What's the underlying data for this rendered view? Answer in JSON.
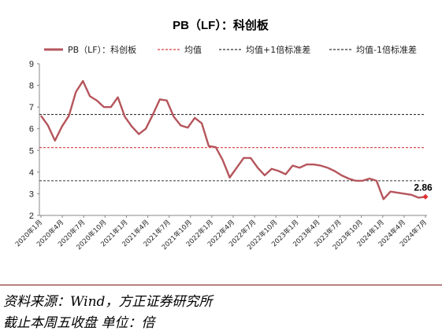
{
  "chart_data": {
    "type": "line",
    "title": "PB（LF）：科创板",
    "xlabel": "",
    "ylabel": "",
    "ylim": [
      2,
      9
    ],
    "yticks": [
      2,
      3,
      4,
      5,
      6,
      7,
      8,
      9
    ],
    "grid": false,
    "legend_position": "top",
    "x_tick_labels": [
      "2020年1月",
      "2020年4月",
      "2020年7月",
      "2020年10月",
      "2021年1月",
      "2021年4月",
      "2021年7月",
      "2021年10月",
      "2022年1月",
      "2022年4月",
      "2022年7月",
      "2022年10月",
      "2023年1月",
      "2023年4月",
      "2023年7月",
      "2023年10月",
      "2024年1月",
      "2024年4月",
      "2024年7月"
    ],
    "series": [
      {
        "name": "PB（LF）：科创板",
        "color": "#b5555c",
        "values": [
          6.6,
          6.15,
          5.45,
          6.1,
          6.6,
          7.7,
          8.2,
          7.5,
          7.3,
          7.0,
          7.0,
          7.45,
          6.55,
          6.1,
          5.75,
          6.0,
          6.65,
          7.35,
          7.3,
          6.55,
          6.15,
          6.05,
          6.5,
          6.25,
          5.2,
          5.15,
          4.55,
          3.75,
          4.2,
          4.65,
          4.65,
          4.2,
          3.85,
          4.15,
          4.05,
          3.9,
          4.3,
          4.2,
          4.35,
          4.35,
          4.3,
          4.2,
          4.05,
          3.85,
          3.7,
          3.6,
          3.6,
          3.7,
          3.6,
          2.75,
          3.1,
          3.05,
          3.0,
          2.95,
          2.82,
          2.86
        ]
      }
    ],
    "reference_lines": [
      {
        "name": "均值",
        "value": 5.13,
        "color": "#d93b3b",
        "style": "dashed"
      },
      {
        "name": "均值+1倍标准差",
        "value": 6.66,
        "color": "#333333",
        "style": "dashed"
      },
      {
        "name": "均值-1倍标准差",
        "value": 3.6,
        "color": "#333333",
        "style": "dashed"
      }
    ],
    "annotations": [
      {
        "text": "2.86",
        "x_index": 55,
        "value": 2.86,
        "marker_color": "#e03030"
      }
    ]
  },
  "footer": {
    "source": "资料来源：Wind，方正证券研究所",
    "note": "截止本周五收盘 单位：倍"
  }
}
